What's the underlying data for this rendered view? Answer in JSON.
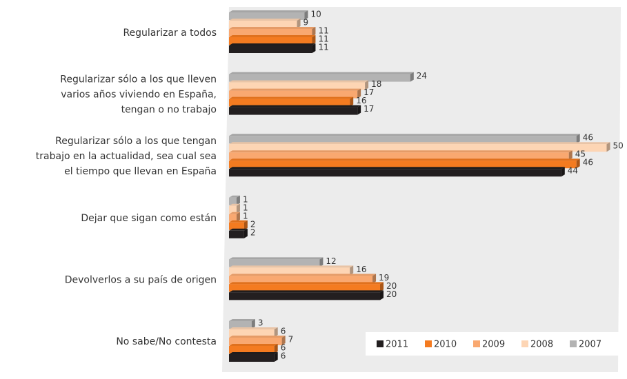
{
  "chart_data": {
    "type": "bar",
    "orientation": "horizontal",
    "categories": [
      "Regularizar a todos",
      "Regularizar sólo a los que lleven\nvarios años viviendo en España,\ntengan o no trabajo",
      "Regularizar sólo a los que tengan\ntrabajo en la actualidad, sea cual sea\nel tiempo que llevan en España",
      "Dejar que sigan como están",
      "Devolverlos a su país de origen",
      "No sabe/No contesta"
    ],
    "series": [
      {
        "name": "2007",
        "color": "#b3b3b3",
        "values": [
          10,
          24,
          46,
          1,
          12,
          3
        ]
      },
      {
        "name": "2008",
        "color": "#fdd5b4",
        "values": [
          9,
          18,
          50,
          1,
          16,
          6
        ]
      },
      {
        "name": "2009",
        "color": "#f9a870",
        "values": [
          11,
          17,
          45,
          1,
          19,
          7
        ]
      },
      {
        "name": "2010",
        "color": "#f47b20",
        "values": [
          11,
          16,
          46,
          2,
          20,
          6
        ]
      },
      {
        "name": "2011",
        "color": "#231f20",
        "values": [
          11,
          17,
          44,
          2,
          20,
          6
        ]
      }
    ],
    "legend": "bottom-right"
  }
}
